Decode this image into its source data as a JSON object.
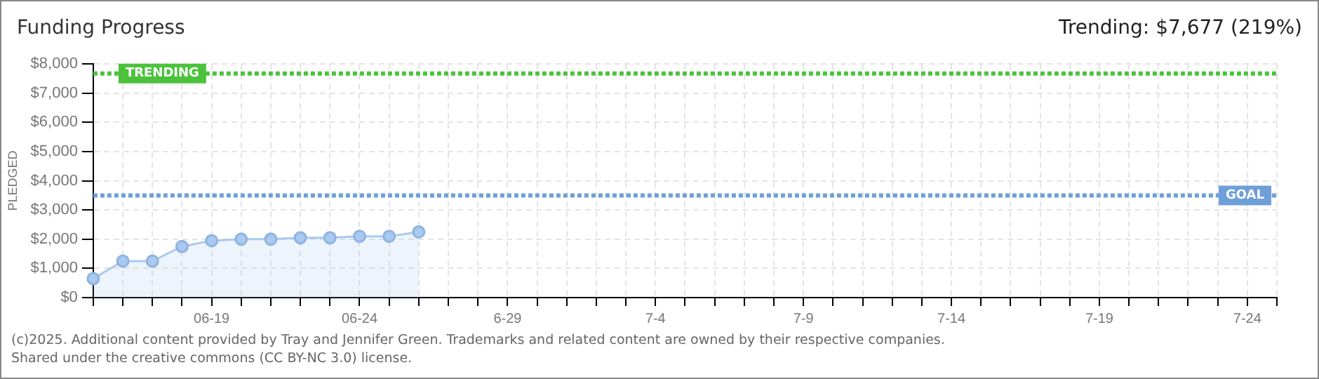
{
  "chart_data": {
    "type": "area",
    "title": "Funding Progress",
    "subtitle": "Trending: $7,677 (219%)",
    "ylabel": "PLEDGED",
    "categories": [
      null,
      null,
      null,
      null,
      "06-19",
      null,
      null,
      null,
      null,
      "06-24",
      null,
      null,
      null,
      null,
      "6-29",
      null,
      null,
      null,
      null,
      "7-4",
      null,
      null,
      null,
      null,
      "7-9",
      null,
      null,
      null,
      null,
      "7-14",
      null,
      null,
      null,
      null,
      "7-19",
      null,
      null,
      null,
      null,
      "7-24",
      null
    ],
    "series": [
      {
        "color": "#a9c9ef",
        "values": [
          650,
          1250,
          1250,
          1750,
          1950,
          2000,
          2000,
          2050,
          2050,
          2100,
          2100,
          2250,
          null,
          null,
          null,
          null,
          null,
          null,
          null,
          null,
          null,
          null,
          null,
          null,
          null,
          null,
          null,
          null,
          null,
          null,
          null,
          null,
          null,
          null,
          null,
          null,
          null,
          null,
          null,
          null,
          null
        ]
      }
    ],
    "ylim": [
      0,
      8000
    ],
    "yticks": [
      {
        "value": 0,
        "label": "$0"
      },
      {
        "value": 1000,
        "label": "$1,000"
      },
      {
        "value": 2000,
        "label": "$2,000"
      },
      {
        "value": 3000,
        "label": "$3,000"
      },
      {
        "value": 4000,
        "label": "$4,000"
      },
      {
        "value": 5000,
        "label": "$5,000"
      },
      {
        "value": 6000,
        "label": "$6,000"
      },
      {
        "value": 7000,
        "label": "$7,000"
      },
      {
        "value": 8000,
        "label": "$8,000"
      }
    ],
    "ref_lines": [
      {
        "axis": "y",
        "value": 7677,
        "label": "TRENDING",
        "color": "#4cc23c",
        "line_style": "dotted"
      },
      {
        "axis": "y",
        "value": 3500,
        "label": "GOAL",
        "color": "#6f9fd8",
        "line_style": "dotted"
      }
    ],
    "grid": true,
    "marker": "circle",
    "legend": false,
    "annotations": [
      "(c)2025. Additional content provided by Tray and Jennifer Green. Trademarks and related content are owned by their respective companies.",
      "Shared under the creative commons (CC BY-NC 3.0) license."
    ]
  }
}
